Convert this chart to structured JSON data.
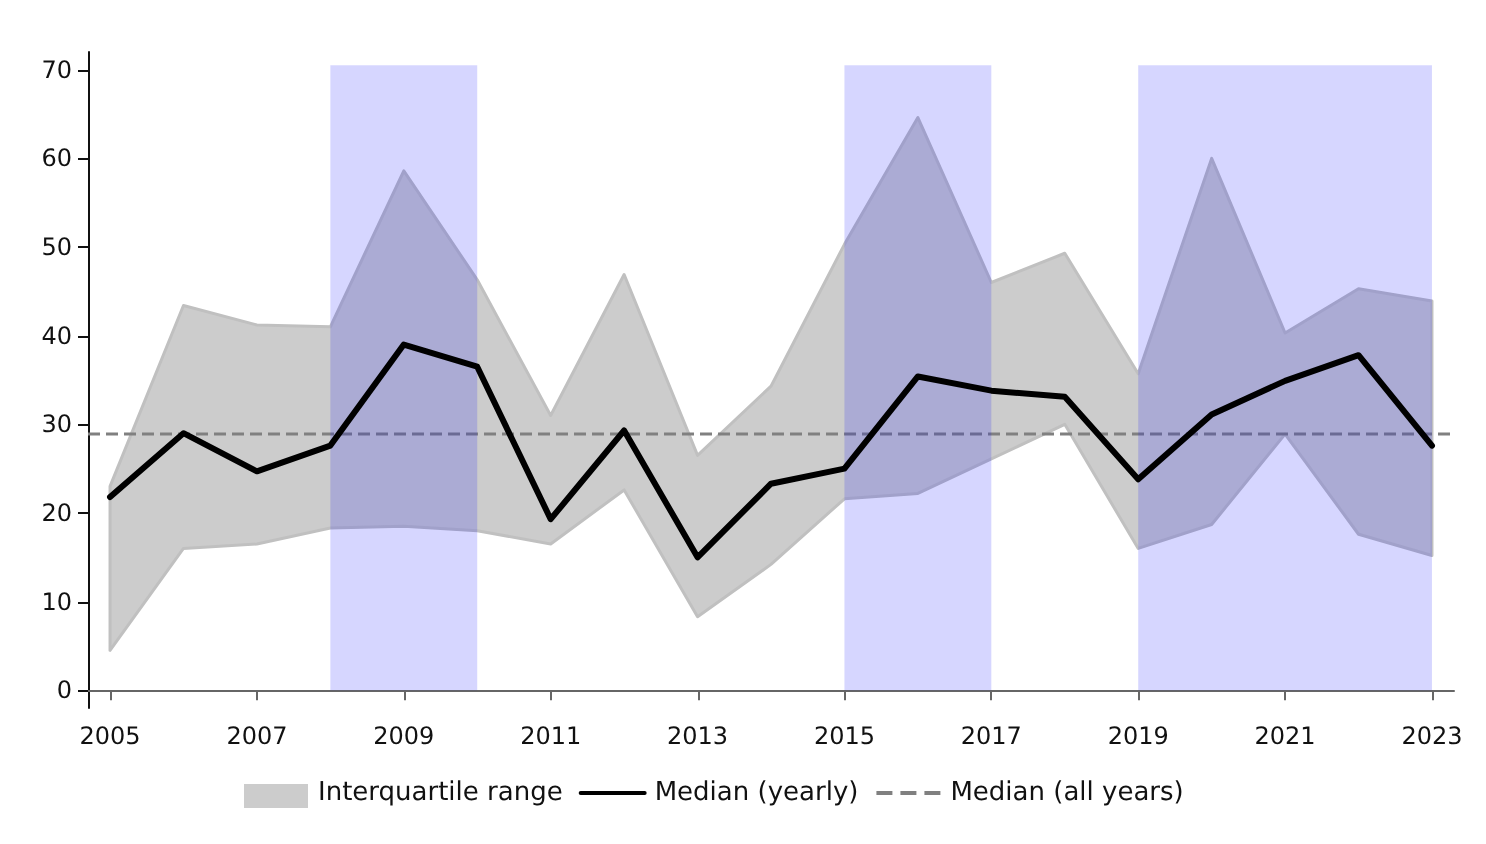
{
  "chart_data": {
    "type": "line",
    "x": [
      2005,
      2006,
      2007,
      2008,
      2009,
      2010,
      2011,
      2012,
      2013,
      2014,
      2015,
      2016,
      2017,
      2018,
      2019,
      2020,
      2021,
      2022,
      2023
    ],
    "series": [
      {
        "name": "Median (yearly)",
        "type": "line",
        "color": "#000000",
        "values": [
          21.8,
          29,
          24.7,
          27.6,
          39,
          36.5,
          19.3,
          29.3,
          15,
          23.3,
          25,
          35.4,
          33.8,
          33.1,
          23.8,
          31.1,
          34.9,
          37.8,
          27.6
        ],
        "lower": [
          4.5,
          16,
          16.5,
          18.3,
          18.5,
          18,
          16.5,
          22.6,
          8.3,
          14.2,
          21.6,
          22.2,
          26.1,
          30,
          16,
          18.7,
          28.9,
          17.6,
          15.2
        ],
        "upper": [
          23,
          43.4,
          41.2,
          41,
          58.6,
          46.3,
          31,
          46.9,
          26.5,
          34.3,
          50.3,
          64.6,
          46,
          49.3,
          35.7,
          60,
          40.3,
          45.3,
          43.9
        ]
      }
    ],
    "annotations": [
      "Interquartile range"
    ],
    "ref_lines": [
      {
        "axis": "y",
        "value": 29,
        "label": "Median (all years)",
        "color": "#808080",
        "line_style": "dashed"
      }
    ],
    "bands": [
      {
        "axis": "x",
        "from": 2008,
        "to": 2010,
        "color": "#0000ff"
      },
      {
        "axis": "x",
        "from": 2015,
        "to": 2017,
        "color": "#0000ff"
      },
      {
        "axis": "x",
        "from": 2019,
        "to": 2023,
        "color": "#0000ff"
      }
    ],
    "xlim": [
      2004.7,
      2023.3
    ],
    "xticks": [
      2005,
      2007,
      2009,
      2011,
      2013,
      2015,
      2017,
      2019,
      2021,
      2023
    ],
    "ylim": [
      -2,
      72
    ],
    "yticks": [
      0,
      10,
      20,
      30,
      40,
      50,
      60,
      70
    ],
    "grid": false,
    "legend": "bottom",
    "marker": "none",
    "line_style": "solid"
  }
}
